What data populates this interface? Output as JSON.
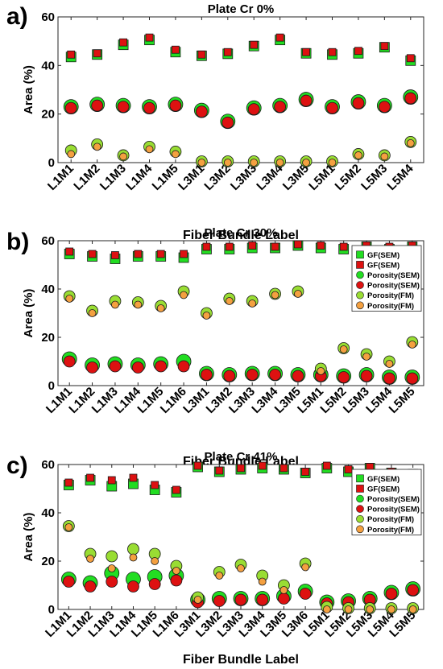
{
  "chart_data": [
    {
      "type": "scatter",
      "panel": "a)",
      "title": "Plate Cr 0%",
      "xlabel": "Fiber Bundle Label",
      "ylabel": "Area (%)",
      "ylim": [
        0,
        60
      ],
      "yticks": [
        0,
        20,
        40,
        60
      ],
      "grid": false,
      "legend": false,
      "categories": [
        "L1M1",
        "L1M2",
        "L1M3",
        "L1M4",
        "L1M5",
        "L3M1",
        "L3M2",
        "L3M3",
        "L3M4",
        "L3M5",
        "L5M1",
        "L5M2",
        "L5M3",
        "L5M4"
      ],
      "series": [
        {
          "marker": "square",
          "fill": "#22dd22",
          "size": 12,
          "values": [
            43.5,
            44.5,
            48.5,
            50.5,
            45.5,
            44,
            44.8,
            48,
            50.5,
            45,
            44.5,
            45,
            47.5,
            42
          ]
        },
        {
          "marker": "square",
          "fill": "#dd1111",
          "size": 9,
          "values": [
            44.5,
            45,
            49.5,
            51.5,
            46.5,
            44.5,
            45.5,
            48.5,
            51.5,
            45.5,
            45.5,
            46,
            48,
            43
          ]
        },
        {
          "marker": "circle",
          "fill": "#22dd22",
          "size": 18,
          "values": [
            23,
            24,
            23.5,
            23,
            24,
            21.5,
            17,
            22.5,
            23.5,
            26,
            23,
            25,
            23.5,
            27
          ]
        },
        {
          "marker": "circle",
          "fill": "#dd1111",
          "size": 14,
          "values": [
            22.5,
            23.5,
            23,
            22.5,
            23.5,
            21,
            16.5,
            22,
            23,
            25.5,
            22.5,
            24.5,
            23,
            26.5
          ]
        },
        {
          "marker": "circle",
          "fill": "#99dd33",
          "size": 14,
          "values": [
            5,
            7.5,
            3,
            6.5,
            4.5,
            0.5,
            0.5,
            0.5,
            0.5,
            0.5,
            0.5,
            3.5,
            3,
            8.5
          ]
        },
        {
          "marker": "circle",
          "fill": "#f4a040",
          "size": 9,
          "values": [
            3.5,
            6.5,
            2.5,
            5.5,
            3.5,
            0,
            0,
            0,
            0,
            0,
            0,
            3,
            2.5,
            8
          ]
        }
      ]
    },
    {
      "type": "scatter",
      "panel": "b)",
      "title": "Plate Cr 30%",
      "xlabel": "Fiber Bundle Label",
      "ylabel": "Area (%)",
      "ylim": [
        0,
        60
      ],
      "yticks": [
        0,
        20,
        40,
        60
      ],
      "grid": false,
      "legend": true,
      "legend_placement": "right",
      "categories": [
        "L1M1",
        "L1M2",
        "L1M3",
        "L1M4",
        "L1M5",
        "L1M6",
        "L3M1",
        "L3M2",
        "L3M3",
        "L3M4",
        "L3M5",
        "L5M1",
        "L5M2",
        "L5M3",
        "L5M4",
        "L5M5"
      ],
      "series": [
        {
          "name": "GF(SEM)",
          "marker": "square",
          "fill": "#22dd22",
          "size": 12,
          "values": [
            54.5,
            53.5,
            52.5,
            53.5,
            53.5,
            53,
            56.5,
            56.5,
            57,
            57,
            58,
            57,
            56.5,
            57.5,
            56.5,
            57.5
          ]
        },
        {
          "name": "GF(SEM)",
          "marker": "square",
          "fill": "#dd1111",
          "size": 9,
          "values": [
            55.5,
            54.5,
            54,
            54.5,
            54.5,
            54.5,
            57.5,
            57.5,
            58,
            57.5,
            58.5,
            58,
            57.5,
            58,
            57.5,
            58
          ]
        },
        {
          "name": "Porosity(SEM)",
          "marker": "circle",
          "fill": "#22dd22",
          "size": 18,
          "values": [
            11,
            8.5,
            9,
            8.5,
            9,
            10,
            5,
            4.5,
            5,
            5,
            4.5,
            4.5,
            4,
            4.5,
            3.5,
            3.5
          ]
        },
        {
          "name": "Porosity(SEM)",
          "marker": "circle",
          "fill": "#dd1111",
          "size": 14,
          "values": [
            10,
            7.5,
            8,
            7.5,
            8,
            8,
            4.5,
            4,
            4.5,
            4.5,
            4,
            4,
            3.5,
            4,
            3,
            3
          ]
        },
        {
          "name": "Porosity(FM)",
          "marker": "circle",
          "fill": "#99dd33",
          "size": 14,
          "values": [
            37,
            31,
            35,
            34.5,
            33,
            39,
            30,
            36,
            35,
            38,
            39,
            7,
            15.5,
            13,
            10,
            18
          ]
        },
        {
          "name": "Porosity(FM)",
          "marker": "circle",
          "fill": "#f4a040",
          "size": 9,
          "values": [
            36,
            30,
            33.5,
            33.5,
            32,
            37.5,
            29,
            35,
            34,
            37.5,
            38,
            6,
            15,
            12,
            9,
            17
          ]
        }
      ]
    },
    {
      "type": "scatter",
      "panel": "c)",
      "title": "Plate Cr 41%",
      "xlabel": "Fiber Bundle Label",
      "ylabel": "Area (%)",
      "ylim": [
        0,
        60
      ],
      "yticks": [
        0,
        20,
        40,
        60
      ],
      "grid": false,
      "legend": true,
      "legend_placement": "right",
      "categories": [
        "L1M1",
        "L1M2",
        "L1M3",
        "L1M4",
        "L1M5",
        "L1M6",
        "L3M1",
        "L3M2",
        "L3M3",
        "L3M4",
        "L3M5",
        "L3M6",
        "L5M1",
        "L5M2",
        "L5M3",
        "L5M4",
        "L5M5"
      ],
      "series": [
        {
          "name": "GF(SEM)",
          "marker": "square",
          "fill": "#22dd22",
          "size": 12,
          "values": [
            51.5,
            53.5,
            51,
            52,
            49.5,
            48.5,
            59,
            57,
            58,
            58.5,
            58,
            56.5,
            58.5,
            57,
            58.5,
            56.5,
            56
          ]
        },
        {
          "name": "GF(SEM)",
          "marker": "square",
          "fill": "#dd1111",
          "size": 9,
          "values": [
            52.5,
            54.5,
            53.5,
            54.5,
            51.5,
            49.5,
            59.5,
            57.5,
            58.5,
            59.5,
            58.5,
            57,
            59.5,
            58,
            59,
            57,
            56.5
          ]
        },
        {
          "name": "Porosity(SEM)",
          "marker": "circle",
          "fill": "#22dd22",
          "size": 18,
          "values": [
            12.5,
            11,
            15,
            12.5,
            13.5,
            14,
            4,
            4.5,
            4.5,
            4.5,
            5.5,
            7.5,
            3,
            3.5,
            4.5,
            7,
            8.5
          ]
        },
        {
          "name": "Porosity(SEM)",
          "marker": "circle",
          "fill": "#dd1111",
          "size": 14,
          "values": [
            11.5,
            9.5,
            11.5,
            9.5,
            10.5,
            12,
            3,
            3.5,
            4,
            4,
            4.5,
            6.5,
            2.5,
            3,
            4,
            6.5,
            8
          ]
        },
        {
          "name": "Porosity(FM)",
          "marker": "circle",
          "fill": "#99dd33",
          "size": 14,
          "values": [
            34.5,
            23,
            22,
            25,
            23,
            18,
            5,
            15.5,
            18.5,
            14,
            10,
            19,
            1,
            0.5,
            0.5,
            0.5,
            0.5
          ]
        },
        {
          "name": "Porosity(FM)",
          "marker": "circle",
          "fill": "#f4a040",
          "size": 9,
          "values": [
            34,
            21,
            17,
            21.5,
            20,
            16,
            4,
            14,
            17,
            11.5,
            8,
            17.5,
            0,
            0,
            0,
            0,
            0
          ]
        }
      ]
    }
  ]
}
